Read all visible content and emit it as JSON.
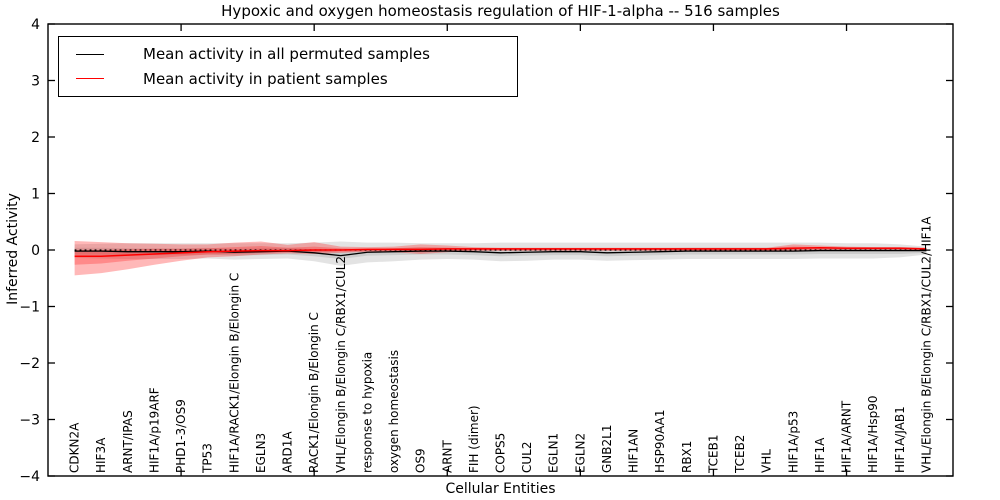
{
  "chart_data": {
    "type": "line",
    "title": "Hypoxic and oxygen homeostasis regulation of HIF-1-alpha -- 516 samples",
    "xlabel": "Cellular Entities",
    "ylabel": "Inferred Activity",
    "ylim": [
      -4,
      4
    ],
    "grid": false,
    "legend_position": "upper left",
    "yticks": [
      {
        "value": 4,
        "label": "4"
      },
      {
        "value": 3,
        "label": "3"
      },
      {
        "value": 2,
        "label": "2"
      },
      {
        "value": 1,
        "label": "1"
      },
      {
        "value": 0,
        "label": "0"
      },
      {
        "value": -1,
        "label": "−1"
      },
      {
        "value": -2,
        "label": "−2"
      },
      {
        "value": -3,
        "label": "−3"
      },
      {
        "value": -4,
        "label": "−4"
      }
    ],
    "xtick_indices": [
      4,
      9,
      14,
      19,
      24,
      29
    ],
    "categories": [
      "CDKN2A",
      "HIF3A",
      "ARNT/IPAS",
      "HIF1A/p19ARF",
      "PHD1-3/OS9",
      "TP53",
      "HIF1A/RACK1/Elongin B/Elongin C",
      "EGLN3",
      "ARD1A",
      "RACK1/Elongin B/Elongin C",
      "VHL/Elongin B/Elongin C/RBX1/CUL2",
      "response to hypoxia",
      "oxygen homeostasis",
      "OS9",
      "ARNT",
      "FIH (dimer)",
      "COPS5",
      "CUL2",
      "EGLN1",
      "EGLN2",
      "GNB2L1",
      "HIF1AN",
      "HSP90AA1",
      "RBX1",
      "TCEB1",
      "TCEB2",
      "VHL",
      "HIF1A/p53",
      "HIF1A",
      "HIF1A/ARNT",
      "HIF1A/Hsp90",
      "HIF1A/JAB1",
      "VHL/Elongin B/Elongin C/RBX1/CUL2/HIF1A"
    ],
    "ref_line": {
      "value": 0,
      "color": "#000000",
      "style": "dotted"
    },
    "series": [
      {
        "name": "Mean activity in all permuted samples",
        "color": "#000000",
        "width": 1.3,
        "dash": "",
        "values": [
          -0.02,
          -0.02,
          -0.03,
          -0.03,
          -0.03,
          -0.02,
          -0.04,
          -0.03,
          -0.02,
          -0.05,
          -0.1,
          -0.04,
          -0.03,
          -0.02,
          -0.02,
          -0.03,
          -0.05,
          -0.04,
          -0.03,
          -0.03,
          -0.05,
          -0.04,
          -0.03,
          -0.02,
          -0.02,
          -0.02,
          -0.02,
          -0.02,
          -0.01,
          -0.01,
          -0.01,
          -0.01,
          -0.01
        ]
      },
      {
        "name": "Mean activity in patient samples",
        "color": "#ff0000",
        "width": 1.5,
        "dash": "",
        "values": [
          -0.11,
          -0.11,
          -0.09,
          -0.07,
          -0.05,
          -0.03,
          -0.02,
          -0.01,
          -0.01,
          0.0,
          0.0,
          0.01,
          0.01,
          0.01,
          0.02,
          0.02,
          0.02,
          0.02,
          0.02,
          0.02,
          0.02,
          0.02,
          0.02,
          0.02,
          0.02,
          0.02,
          0.02,
          0.03,
          0.04,
          0.03,
          0.03,
          0.03,
          0.02
        ]
      }
    ],
    "bands": [
      {
        "name": "permuted-range-outer",
        "color": "#808080",
        "opacity": 0.22,
        "upper": [
          0.1,
          0.11,
          0.12,
          0.12,
          0.12,
          0.12,
          0.12,
          0.12,
          0.12,
          0.13,
          0.15,
          0.13,
          0.13,
          0.12,
          0.12,
          0.12,
          0.13,
          0.13,
          0.13,
          0.13,
          0.13,
          0.13,
          0.13,
          0.13,
          0.13,
          0.13,
          0.13,
          0.13,
          0.13,
          0.12,
          0.12,
          0.1,
          0.06
        ],
        "lower": [
          -0.14,
          -0.15,
          -0.16,
          -0.16,
          -0.16,
          -0.15,
          -0.17,
          -0.16,
          -0.15,
          -0.2,
          -0.28,
          -0.22,
          -0.2,
          -0.17,
          -0.16,
          -0.17,
          -0.2,
          -0.19,
          -0.17,
          -0.17,
          -0.19,
          -0.18,
          -0.17,
          -0.16,
          -0.16,
          -0.16,
          -0.16,
          -0.16,
          -0.15,
          -0.15,
          -0.15,
          -0.13,
          -0.08
        ]
      },
      {
        "name": "permuted-range-inner",
        "color": "#808080",
        "opacity": 0.22,
        "upper": [
          0.04,
          0.04,
          0.03,
          0.03,
          0.03,
          0.04,
          0.02,
          0.03,
          0.04,
          0.01,
          -0.04,
          0.02,
          0.03,
          0.04,
          0.04,
          0.03,
          0.01,
          0.02,
          0.03,
          0.03,
          0.01,
          0.02,
          0.03,
          0.04,
          0.04,
          0.04,
          0.04,
          0.04,
          0.05,
          0.05,
          0.05,
          0.05,
          0.03
        ],
        "lower": [
          -0.08,
          -0.08,
          -0.09,
          -0.09,
          -0.09,
          -0.08,
          -0.1,
          -0.09,
          -0.08,
          -0.11,
          -0.16,
          -0.1,
          -0.09,
          -0.08,
          -0.08,
          -0.09,
          -0.11,
          -0.1,
          -0.09,
          -0.09,
          -0.11,
          -0.1,
          -0.09,
          -0.08,
          -0.08,
          -0.08,
          -0.08,
          -0.08,
          -0.07,
          -0.07,
          -0.07,
          -0.07,
          -0.05
        ]
      },
      {
        "name": "patient-range-outer",
        "color": "#ff0000",
        "opacity": 0.28,
        "upper": [
          0.16,
          0.14,
          0.12,
          0.11,
          0.1,
          0.1,
          0.13,
          0.15,
          0.09,
          0.14,
          0.06,
          0.05,
          0.06,
          0.1,
          0.08,
          0.05,
          0.04,
          0.04,
          0.04,
          0.04,
          0.04,
          0.04,
          0.04,
          0.04,
          0.04,
          0.04,
          0.04,
          0.1,
          0.08,
          0.06,
          0.05,
          0.05,
          0.04
        ],
        "lower": [
          -0.45,
          -0.41,
          -0.34,
          -0.26,
          -0.19,
          -0.13,
          -0.11,
          -0.08,
          -0.06,
          -0.07,
          -0.05,
          -0.03,
          -0.04,
          -0.07,
          -0.04,
          -0.01,
          -0.01,
          -0.01,
          -0.01,
          -0.01,
          -0.01,
          -0.01,
          -0.01,
          -0.01,
          -0.01,
          -0.01,
          -0.01,
          -0.01,
          0.0,
          0.0,
          0.0,
          0.0,
          0.0
        ],
        "lower2": null
      },
      {
        "name": "patient-range-inner",
        "color": "#ff0000",
        "opacity": 0.25,
        "upper": [
          0.0,
          0.0,
          0.01,
          0.02,
          0.02,
          0.03,
          0.05,
          0.07,
          0.04,
          0.06,
          0.03,
          0.02,
          0.03,
          0.05,
          0.04,
          0.03,
          0.03,
          0.03,
          0.03,
          0.03,
          0.03,
          0.03,
          0.03,
          0.03,
          0.03,
          0.03,
          0.03,
          0.06,
          0.05,
          0.04,
          0.04,
          0.04,
          0.03
        ],
        "lower": [
          -0.26,
          -0.24,
          -0.19,
          -0.15,
          -0.11,
          -0.08,
          -0.07,
          -0.05,
          -0.04,
          -0.04,
          -0.03,
          -0.02,
          -0.02,
          -0.04,
          -0.02,
          -0.01,
          -0.01,
          -0.01,
          -0.01,
          -0.01,
          -0.01,
          -0.01,
          -0.01,
          -0.01,
          -0.01,
          -0.01,
          -0.01,
          0.0,
          0.01,
          0.01,
          0.01,
          0.01,
          0.01
        ]
      }
    ]
  },
  "legend": {
    "items": [
      {
        "label": "Mean activity in all permuted samples",
        "color": "#000000"
      },
      {
        "label": "Mean activity in patient samples",
        "color": "#ff0000"
      }
    ]
  }
}
